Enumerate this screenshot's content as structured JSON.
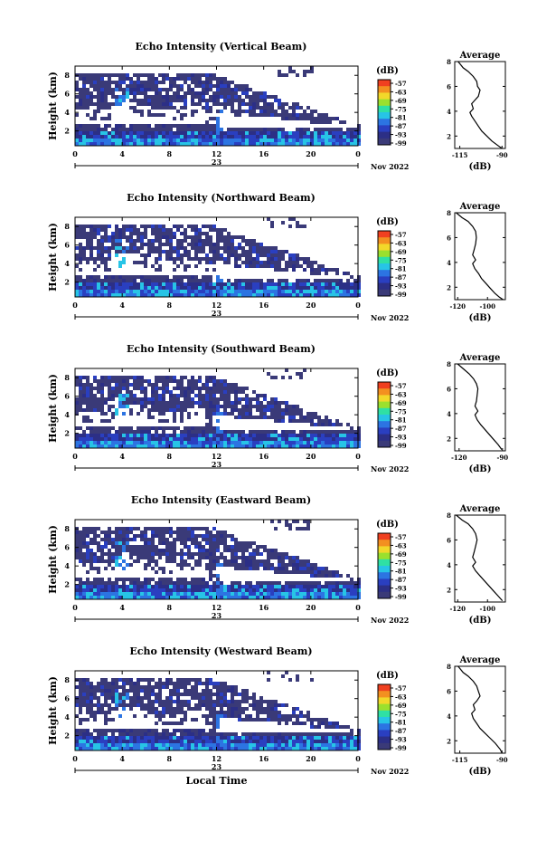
{
  "chart_data": [
    {
      "type": "heatmap",
      "title": "Echo Intensity (Vertical Beam)",
      "ylabel": "Height (km)",
      "x_ticks": [
        "0",
        "4",
        "8",
        "12",
        "16",
        "20",
        "0"
      ],
      "day_label": "23",
      "date_label": "Nov 2022",
      "y_ticks": [
        "2",
        "4",
        "6",
        "8"
      ],
      "colorbar": {
        "unit": "(dB)",
        "ticks": [
          "-57",
          "-63",
          "-69",
          "-75",
          "-81",
          "-87",
          "-93",
          "-99"
        ]
      },
      "average_profile": {
        "title": "Average",
        "xlabel": "(dB)",
        "x_ticks": [
          "-115",
          "-90"
        ],
        "xlim": [
          -118,
          -88
        ],
        "y_ticks": [
          "2",
          "4",
          "6",
          "8"
        ],
        "ylim": [
          1,
          8
        ],
        "points": [
          [
            -116,
            8
          ],
          [
            -113,
            7.5
          ],
          [
            -110,
            7.2
          ],
          [
            -107,
            6.8
          ],
          [
            -105,
            6.4
          ],
          [
            -104.5,
            6
          ],
          [
            -103,
            5.7
          ],
          [
            -104,
            5.2
          ],
          [
            -106,
            4.9
          ],
          [
            -108,
            4.6
          ],
          [
            -107,
            4.2
          ],
          [
            -109,
            3.9
          ],
          [
            -108,
            3.6
          ],
          [
            -106,
            3.2
          ],
          [
            -104,
            2.8
          ],
          [
            -102,
            2.4
          ],
          [
            -99,
            2
          ],
          [
            -96,
            1.6
          ],
          [
            -92,
            1.2
          ],
          [
            -90,
            1
          ]
        ]
      }
    },
    {
      "type": "heatmap",
      "title": "Echo Intensity (Northward Beam)",
      "ylabel": "Height (km)",
      "x_ticks": [
        "0",
        "4",
        "8",
        "12",
        "16",
        "20",
        "0"
      ],
      "day_label": "23",
      "date_label": "Nov 2022",
      "y_ticks": [
        "2",
        "4",
        "6",
        "8"
      ],
      "colorbar": {
        "unit": "(dB)",
        "ticks": [
          "-57",
          "-63",
          "-69",
          "-75",
          "-81",
          "-87",
          "-93",
          "-99"
        ]
      },
      "average_profile": {
        "title": "Average",
        "xlabel": "(dB)",
        "x_ticks": [
          "-120",
          "-100"
        ],
        "xlim": [
          -122,
          -88
        ],
        "y_ticks": [
          "2",
          "4",
          "6",
          "8"
        ],
        "ylim": [
          1,
          8
        ],
        "points": [
          [
            -121,
            8
          ],
          [
            -117,
            7.6
          ],
          [
            -113,
            7.3
          ],
          [
            -110,
            6.9
          ],
          [
            -108,
            6.5
          ],
          [
            -107.5,
            6
          ],
          [
            -108,
            5.5
          ],
          [
            -109,
            5
          ],
          [
            -110,
            4.6
          ],
          [
            -108,
            4.2
          ],
          [
            -110,
            3.9
          ],
          [
            -108.5,
            3.5
          ],
          [
            -106,
            3.1
          ],
          [
            -104,
            2.7
          ],
          [
            -101,
            2.3
          ],
          [
            -98,
            1.9
          ],
          [
            -95,
            1.5
          ],
          [
            -92,
            1.2
          ],
          [
            -89.5,
            1
          ]
        ]
      }
    },
    {
      "type": "heatmap",
      "title": "Echo Intensity (Southward Beam)",
      "ylabel": "Height (km)",
      "x_ticks": [
        "0",
        "4",
        "8",
        "12",
        "16",
        "20",
        "0"
      ],
      "day_label": "23",
      "date_label": "Nov 2022",
      "y_ticks": [
        "2",
        "4",
        "6",
        "8"
      ],
      "colorbar": {
        "unit": "(dB)",
        "ticks": [
          "-57",
          "-63",
          "-69",
          "-75",
          "-81",
          "-87",
          "-93",
          "-99"
        ]
      },
      "average_profile": {
        "title": "Average",
        "xlabel": "(dB)",
        "x_ticks": [
          "-120",
          "-90"
        ],
        "xlim": [
          -123,
          -88
        ],
        "y_ticks": [
          "2",
          "4",
          "6",
          "8"
        ],
        "ylim": [
          1,
          8
        ],
        "points": [
          [
            -121,
            8
          ],
          [
            -117,
            7.6
          ],
          [
            -113,
            7.2
          ],
          [
            -110,
            6.8
          ],
          [
            -108,
            6.4
          ],
          [
            -107,
            6
          ],
          [
            -107.5,
            5.5
          ],
          [
            -108,
            5
          ],
          [
            -109,
            4.6
          ],
          [
            -107,
            4.2
          ],
          [
            -109,
            3.9
          ],
          [
            -107.5,
            3.5
          ],
          [
            -105,
            3.1
          ],
          [
            -102,
            2.7
          ],
          [
            -99,
            2.3
          ],
          [
            -96,
            1.9
          ],
          [
            -93,
            1.5
          ],
          [
            -90.5,
            1.1
          ]
        ]
      }
    },
    {
      "type": "heatmap",
      "title": "Echo Intensity (Eastward Beam)",
      "ylabel": "Height (km)",
      "x_ticks": [
        "0",
        "4",
        "8",
        "12",
        "16",
        "20",
        "0"
      ],
      "day_label": "23",
      "date_label": "Nov 2022",
      "y_ticks": [
        "2",
        "4",
        "6",
        "8"
      ],
      "colorbar": {
        "unit": "(dB)",
        "ticks": [
          "-57",
          "-63",
          "-69",
          "-75",
          "-81",
          "-87",
          "-93",
          "-99"
        ]
      },
      "average_profile": {
        "title": "Average",
        "xlabel": "(dB)",
        "x_ticks": [
          "-120",
          "-100"
        ],
        "xlim": [
          -122,
          -88
        ],
        "y_ticks": [
          "2",
          "4",
          "6",
          "8"
        ],
        "ylim": [
          1,
          8
        ],
        "points": [
          [
            -121,
            8
          ],
          [
            -117,
            7.6
          ],
          [
            -113,
            7.3
          ],
          [
            -110,
            6.9
          ],
          [
            -108,
            6.5
          ],
          [
            -107,
            6
          ],
          [
            -108,
            5.5
          ],
          [
            -109,
            5
          ],
          [
            -110,
            4.6
          ],
          [
            -108,
            4.2
          ],
          [
            -110,
            3.9
          ],
          [
            -108,
            3.5
          ],
          [
            -105,
            3.1
          ],
          [
            -102,
            2.7
          ],
          [
            -99,
            2.3
          ],
          [
            -96,
            1.9
          ],
          [
            -93,
            1.5
          ],
          [
            -90,
            1.1
          ]
        ]
      }
    },
    {
      "type": "heatmap",
      "title": "Echo Intensity (Westward Beam)",
      "ylabel": "Height (km)",
      "xlabel": "Local Time",
      "x_ticks": [
        "0",
        "4",
        "8",
        "12",
        "16",
        "20",
        "0"
      ],
      "day_label": "23",
      "date_label": "Nov 2022",
      "y_ticks": [
        "2",
        "4",
        "6",
        "8"
      ],
      "colorbar": {
        "unit": "(dB)",
        "ticks": [
          "-57",
          "-63",
          "-69",
          "-75",
          "-81",
          "-87",
          "-93",
          "-99"
        ]
      },
      "average_profile": {
        "title": "Average",
        "xlabel": "(dB)",
        "x_ticks": [
          "-115",
          "-90"
        ],
        "xlim": [
          -118,
          -88
        ],
        "y_ticks": [
          "2",
          "4",
          "6",
          "8"
        ],
        "ylim": [
          1,
          8
        ],
        "points": [
          [
            -116,
            8
          ],
          [
            -113,
            7.5
          ],
          [
            -110,
            7.2
          ],
          [
            -107,
            6.8
          ],
          [
            -105,
            6.4
          ],
          [
            -104,
            6
          ],
          [
            -103,
            5.6
          ],
          [
            -105,
            5.2
          ],
          [
            -107,
            4.9
          ],
          [
            -106,
            4.5
          ],
          [
            -108,
            4.2
          ],
          [
            -107,
            3.8
          ],
          [
            -105,
            3.4
          ],
          [
            -103,
            3
          ],
          [
            -100,
            2.6
          ],
          [
            -97,
            2.2
          ],
          [
            -94,
            1.8
          ],
          [
            -91,
            1.3
          ],
          [
            -90,
            1
          ]
        ]
      }
    }
  ]
}
